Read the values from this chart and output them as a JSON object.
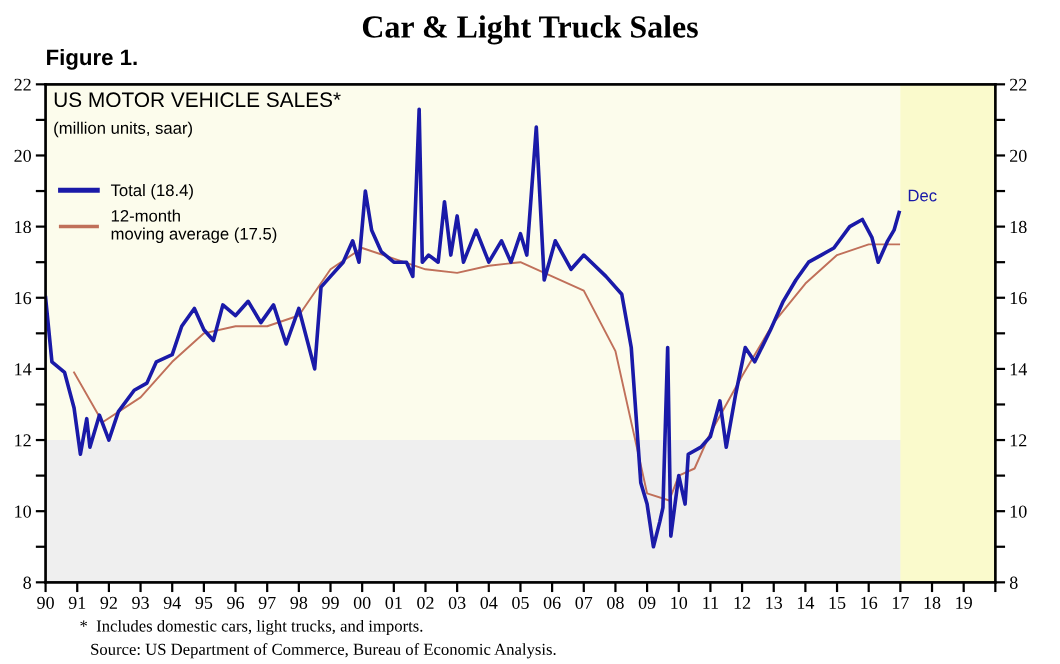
{
  "chart_data": {
    "type": "line",
    "title": "Car & Light Truck Sales",
    "subtitle": "US MOTOR VEHICLE SALES*",
    "annotations": [
      "Figure 1.",
      "(million units, saar)",
      {
        "text": "Dec",
        "x": 2016.96,
        "y": 18.4
      },
      "*  Includes domestic cars, light trucks, and imports.",
      "Source: US Department of Commerce, Bureau of Economic Analysis."
    ],
    "series": [
      {
        "name": "Total (18.4)",
        "color": "#1a1aa8",
        "x": [
          1990.0,
          1990.2,
          1990.6,
          1990.9,
          1991.1,
          1991.3,
          1991.4,
          1991.7,
          1992.0,
          1992.3,
          1992.8,
          1993.2,
          1993.5,
          1994.0,
          1994.3,
          1994.7,
          1995.0,
          1995.3,
          1995.6,
          1996.0,
          1996.4,
          1996.8,
          1997.2,
          1997.6,
          1998.0,
          1998.5,
          1998.7,
          1999.0,
          1999.4,
          1999.7,
          1999.9,
          2000.1,
          2000.3,
          2000.6,
          2001.0,
          2001.4,
          2001.6,
          2001.8,
          2001.9,
          2002.1,
          2002.4,
          2002.6,
          2002.8,
          2003.0,
          2003.2,
          2003.6,
          2004.0,
          2004.4,
          2004.7,
          2005.0,
          2005.2,
          2005.5,
          2005.75,
          2006.1,
          2006.6,
          2007.0,
          2007.7,
          2008.2,
          2008.5,
          2008.8,
          2009.0,
          2009.2,
          2009.4,
          2009.5,
          2009.65,
          2009.75,
          2010.0,
          2010.2,
          2010.3,
          2010.7,
          2011.0,
          2011.3,
          2011.5,
          2011.8,
          2012.1,
          2012.4,
          2012.9,
          2013.3,
          2013.7,
          2014.1,
          2014.5,
          2014.9,
          2015.4,
          2015.8,
          2016.1,
          2016.3,
          2016.6,
          2016.8,
          2016.96
        ],
        "values": [
          16.0,
          14.2,
          13.9,
          12.9,
          11.6,
          12.6,
          11.8,
          12.7,
          12.0,
          12.8,
          13.4,
          13.6,
          14.2,
          14.4,
          15.2,
          15.7,
          15.1,
          14.8,
          15.8,
          15.5,
          15.9,
          15.3,
          15.8,
          14.7,
          15.7,
          14.0,
          16.3,
          16.6,
          17.0,
          17.6,
          17.0,
          19.0,
          17.9,
          17.3,
          17.0,
          17.0,
          16.6,
          21.3,
          17.0,
          17.2,
          17.0,
          18.7,
          17.2,
          18.3,
          17.0,
          17.9,
          17.0,
          17.6,
          17.0,
          17.8,
          17.2,
          20.8,
          16.5,
          17.6,
          16.8,
          17.2,
          16.6,
          16.1,
          14.6,
          10.8,
          10.2,
          9.0,
          9.7,
          10.1,
          14.6,
          9.3,
          11.0,
          10.2,
          11.6,
          11.8,
          12.1,
          13.1,
          11.8,
          13.3,
          14.6,
          14.2,
          15.1,
          15.9,
          16.5,
          17.0,
          17.2,
          17.4,
          18.0,
          18.2,
          17.7,
          17.0,
          17.6,
          17.9,
          18.4
        ]
      },
      {
        "name": "12-month\nmoving average (17.5)",
        "color": "#c0705a",
        "x": [
          1990.9,
          1991.8,
          1993.0,
          1994.0,
          1995.0,
          1996.0,
          1997.0,
          1998.0,
          1999.0,
          2000.0,
          2001.0,
          2002.0,
          2003.0,
          2004.0,
          2005.0,
          2006.0,
          2007.0,
          2008.0,
          2009.0,
          2009.7,
          2010.0,
          2010.5,
          2011.0,
          2012.0,
          2013.0,
          2014.0,
          2015.0,
          2016.0,
          2016.96
        ],
        "values": [
          13.9,
          12.5,
          13.2,
          14.2,
          15.0,
          15.2,
          15.2,
          15.5,
          16.8,
          17.4,
          17.1,
          16.8,
          16.7,
          16.9,
          17.0,
          16.6,
          16.2,
          14.5,
          10.5,
          10.3,
          11.0,
          11.2,
          12.2,
          13.8,
          15.3,
          16.4,
          17.2,
          17.5,
          17.5
        ]
      }
    ],
    "xlim": [
      1990,
      2020
    ],
    "xticks": [
      {
        "value": 1990,
        "label": "90"
      },
      {
        "value": 1991,
        "label": "91"
      },
      {
        "value": 1992,
        "label": "92"
      },
      {
        "value": 1993,
        "label": "93"
      },
      {
        "value": 1994,
        "label": "94"
      },
      {
        "value": 1995,
        "label": "95"
      },
      {
        "value": 1996,
        "label": "96"
      },
      {
        "value": 1997,
        "label": "97"
      },
      {
        "value": 1998,
        "label": "98"
      },
      {
        "value": 1999,
        "label": "99"
      },
      {
        "value": 2000,
        "label": "00"
      },
      {
        "value": 2001,
        "label": "01"
      },
      {
        "value": 2002,
        "label": "02"
      },
      {
        "value": 2003,
        "label": "03"
      },
      {
        "value": 2004,
        "label": "04"
      },
      {
        "value": 2005,
        "label": "05"
      },
      {
        "value": 2006,
        "label": "06"
      },
      {
        "value": 2007,
        "label": "07"
      },
      {
        "value": 2008,
        "label": "08"
      },
      {
        "value": 2009,
        "label": "09"
      },
      {
        "value": 2010,
        "label": "10"
      },
      {
        "value": 2011,
        "label": "11"
      },
      {
        "value": 2012,
        "label": "12"
      },
      {
        "value": 2013,
        "label": "13"
      },
      {
        "value": 2014,
        "label": "14"
      },
      {
        "value": 2015,
        "label": "15"
      },
      {
        "value": 2016,
        "label": "16"
      },
      {
        "value": 2017,
        "label": "17"
      },
      {
        "value": 2018,
        "label": "18"
      },
      {
        "value": 2019,
        "label": "19"
      },
      {
        "value": 2020,
        "label": null
      }
    ],
    "ylim": [
      8,
      22
    ],
    "yticks": [
      8,
      {
        "value": 9,
        "label": null
      },
      10,
      {
        "value": 11,
        "label": null
      },
      12,
      {
        "value": 13,
        "label": null
      },
      14,
      {
        "value": 15,
        "label": null
      },
      16,
      {
        "value": 17,
        "label": null
      },
      18,
      {
        "value": 19,
        "label": null
      },
      20,
      {
        "value": 21,
        "label": null
      },
      22
    ],
    "y2lim": [
      8,
      22
    ],
    "y2ticks": [
      8,
      {
        "value": 9,
        "label": null
      },
      10,
      {
        "value": 11,
        "label": null
      },
      12,
      {
        "value": 13,
        "label": null
      },
      14,
      {
        "value": 15,
        "label": null
      },
      16,
      {
        "value": 17,
        "label": null
      },
      18,
      {
        "value": 19,
        "label": null
      },
      20,
      {
        "value": 21,
        "label": null
      },
      22
    ],
    "bands": [
      {
        "axis": "y",
        "from": 8,
        "to": 12,
        "color": "#efefef"
      },
      {
        "axis": "y",
        "from": 12,
        "to": 22,
        "color": "#fcfcec"
      },
      {
        "axis": "x",
        "from": 2017,
        "to": 2020,
        "color": "#fafacc"
      }
    ],
    "grid": false,
    "legend": "top left",
    "marker": "none",
    "line_style": "solid"
  }
}
